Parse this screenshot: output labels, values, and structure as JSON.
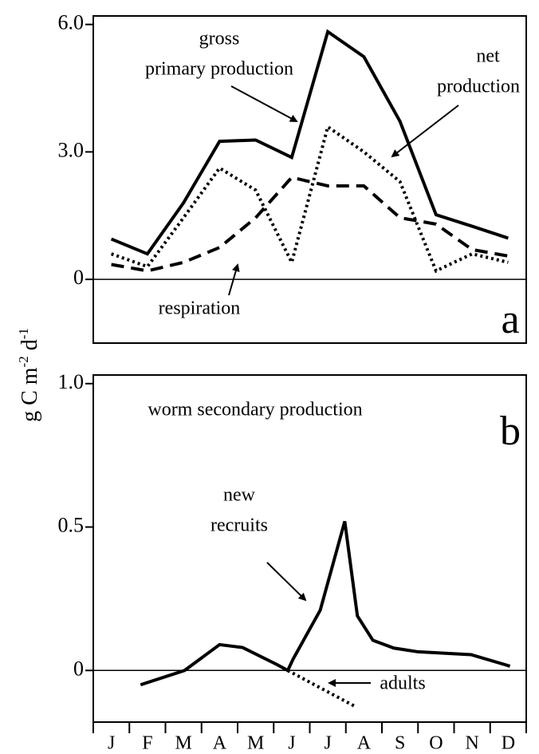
{
  "y_axis_label": [
    "g C m",
    "-2",
    " d",
    "-1"
  ],
  "month_labels": [
    "J",
    "F",
    "M",
    "A",
    "M",
    "J",
    "J",
    "A",
    "S",
    "O",
    "N",
    "D"
  ],
  "chart_data": [
    {
      "type": "line",
      "panel": "a",
      "xlim": [
        0.5,
        12.5
      ],
      "xticks": [
        0.5,
        1.5,
        2.5,
        3.5,
        4.5,
        5.5,
        6.5,
        7.5,
        8.5,
        9.5,
        10.5,
        11.5,
        12.5
      ],
      "ylim": [
        -1.5,
        6.2
      ],
      "yticks": [
        {
          "value": 6,
          "label": "6.0"
        },
        {
          "value": 3,
          "label": "3.0"
        },
        0
      ],
      "annotations": [
        "gross",
        "primary production",
        "net",
        "production",
        "respiration"
      ],
      "series": [
        {
          "name": "gross primary production",
          "style": "solid",
          "color": "#000",
          "x": [
            1,
            2,
            3,
            4,
            5,
            6,
            7,
            8,
            9,
            10,
            11,
            12
          ],
          "values": [
            0.95,
            0.6,
            1.8,
            3.25,
            3.28,
            2.87,
            5.83,
            5.24,
            3.72,
            1.52,
            1.25,
            0.97
          ]
        },
        {
          "name": "net production",
          "style": "dotted",
          "color": "#000",
          "x": [
            1,
            2,
            3,
            4,
            5,
            6,
            7,
            8,
            9,
            10,
            11,
            12
          ],
          "values": [
            0.6,
            0.3,
            1.45,
            2.62,
            2.1,
            0.4,
            3.59,
            3.0,
            2.3,
            0.2,
            0.6,
            0.4
          ]
        },
        {
          "name": "respiration",
          "style": "dashed",
          "color": "#000",
          "x": [
            1,
            2,
            3,
            4,
            5,
            6,
            7,
            8,
            9,
            10,
            11,
            12
          ],
          "values": [
            0.35,
            0.2,
            0.4,
            0.75,
            1.45,
            2.4,
            2.2,
            2.2,
            1.45,
            1.3,
            0.7,
            0.55
          ]
        }
      ]
    },
    {
      "type": "line",
      "panel": "b",
      "xlim": [
        0.5,
        12.5
      ],
      "xticks": [
        0.5,
        1.5,
        2.5,
        3.5,
        4.5,
        5.5,
        6.5,
        7.5,
        8.5,
        9.5,
        10.5,
        11.5,
        12.5
      ],
      "ylim": [
        -0.18,
        1.03
      ],
      "yticks": [
        {
          "value": 1,
          "label": "1.0"
        },
        0.5,
        0
      ],
      "annotations": [
        "worm secondary production",
        "new",
        "recruits",
        "adults"
      ],
      "series": [
        {
          "name": "new recruits",
          "style": "solid",
          "color": "#000",
          "x": [
            1.81,
            3.03,
            4.0,
            4.64,
            5.6,
            5.89,
            6.04,
            6.79,
            7.47,
            7.82,
            8.25,
            8.83,
            9.5,
            10.97,
            12.05
          ],
          "values": [
            -0.05,
            0.0,
            0.09,
            0.08,
            0.02,
            0.0,
            0.04,
            0.21,
            0.52,
            0.19,
            0.105,
            0.078,
            0.065,
            0.055,
            0.015
          ]
        },
        {
          "name": "adults",
          "style": "dotted",
          "color": "#000",
          "x": [
            5.89,
            7.75
          ],
          "values": [
            0.0,
            -0.125
          ]
        }
      ]
    }
  ]
}
